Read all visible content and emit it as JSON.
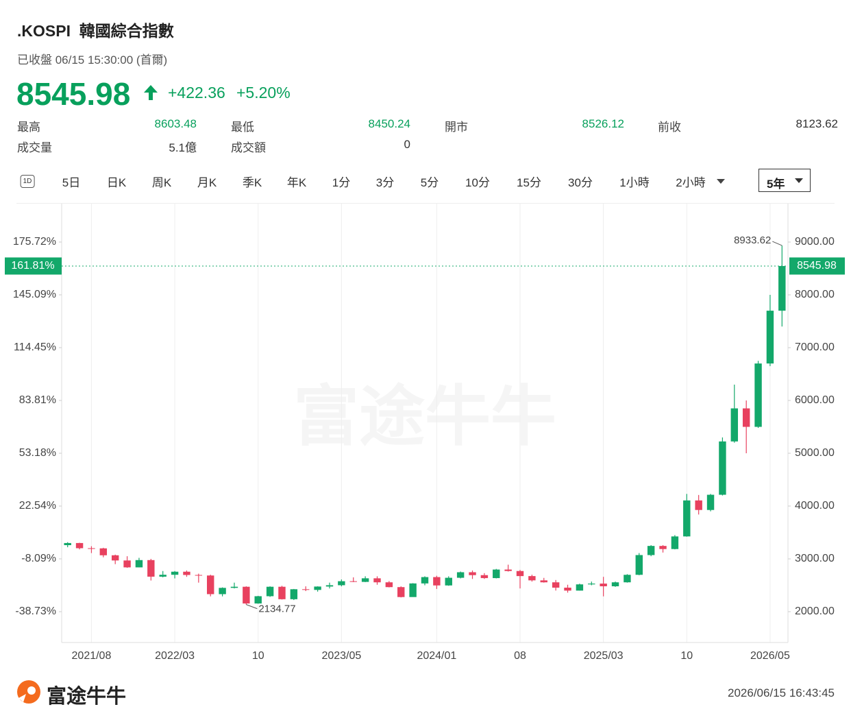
{
  "header": {
    "symbol": ".KOSPI",
    "name": "韓國綜合指數",
    "status": "已收盤 06/15 15:30:00 (首爾)",
    "price": "8545.98",
    "change": "+422.36",
    "change_pct": "+5.20%"
  },
  "stats": [
    [
      {
        "label": "最高",
        "value": "8603.48"
      },
      {
        "label": "最低",
        "value": "8450.24"
      },
      {
        "label": "開市",
        "value": "8526.12"
      },
      {
        "label": "前收",
        "value": "8123.62"
      }
    ],
    [
      {
        "label": "成交量",
        "value": "5.1億"
      },
      {
        "label": "成交額",
        "value": "0"
      }
    ]
  ],
  "tabs": [
    "1D",
    "5日",
    "日K",
    "周K",
    "月K",
    "季K",
    "年K",
    "1分",
    "3分",
    "5分",
    "10分",
    "15分",
    "30分",
    "1小時",
    "2小時"
  ],
  "selected_tab": "5年",
  "watermark": "富途牛牛",
  "footer": {
    "brand": "富途牛牛",
    "timestamp": "2026/06/15 16:43:45"
  },
  "chart_data": {
    "type": "candlestick",
    "up_color": "#13a86a",
    "down_color": "#e8415f",
    "categories": [
      null,
      null,
      "2021/08",
      null,
      null,
      null,
      null,
      null,
      null,
      "2022/03",
      null,
      null,
      null,
      null,
      null,
      null,
      "10",
      null,
      null,
      null,
      null,
      null,
      null,
      "2023/05",
      null,
      null,
      null,
      null,
      null,
      null,
      null,
      "2024/01",
      null,
      null,
      null,
      null,
      null,
      null,
      "08",
      null,
      null,
      null,
      null,
      null,
      null,
      "2025/03",
      null,
      null,
      null,
      null,
      null,
      null,
      "10",
      null,
      null,
      null,
      null,
      null,
      null,
      "2026/05",
      null
    ],
    "open": [
      3260,
      3300,
      3202,
      3199,
      3068,
      2970,
      2839,
      2977,
      2663,
      2699,
      2757,
      2695,
      2685,
      2332,
      2451,
      2472,
      2155,
      2293,
      2472,
      2236,
      2425,
      2412,
      2476,
      2501,
      2577,
      2564,
      2632,
      2556,
      2465,
      2277,
      2535,
      2655,
      2497,
      2642,
      2747,
      2692,
      2636,
      2798,
      2770,
      2674,
      2593,
      2556,
      2455,
      2399,
      2517,
      2532,
      2481,
      2556,
      2698,
      3072,
      3245,
      3186,
      3425,
      4107,
      3926,
      4214,
      5224,
      5850,
      5500,
      6700,
      7700
    ],
    "high": [
      3316,
      3305,
      3240,
      3210,
      3080,
      3050,
      3020,
      3000,
      2770,
      2770,
      2780,
      2720,
      2700,
      2460,
      2550,
      2480,
      2300,
      2480,
      2490,
      2430,
      2480,
      2480,
      2550,
      2610,
      2650,
      2670,
      2670,
      2580,
      2480,
      2540,
      2670,
      2680,
      2670,
      2760,
      2780,
      2730,
      2810,
      2890,
      2790,
      2700,
      2640,
      2600,
      2510,
      2530,
      2570,
      2660,
      2570,
      2710,
      3110,
      3260,
      3260,
      3450,
      4230,
      4210,
      4230,
      5300,
      6300,
      6000,
      6750,
      8000,
      8933.62
    ],
    "low": [
      3220,
      3180,
      3110,
      3030,
      2900,
      2830,
      2840,
      2590,
      2650,
      2630,
      2660,
      2550,
      2290,
      2290,
      2440,
      2134.77,
      2150,
      2280,
      2230,
      2220,
      2390,
      2380,
      2440,
      2480,
      2560,
      2560,
      2510,
      2460,
      2270,
      2280,
      2500,
      2430,
      2490,
      2630,
      2620,
      2620,
      2630,
      2760,
      2440,
      2570,
      2550,
      2400,
      2360,
      2400,
      2500,
      2290,
      2470,
      2550,
      2690,
      3050,
      3120,
      3180,
      3420,
      3840,
      3900,
      4200,
      5200,
      5000,
      5480,
      6650,
      7400
    ],
    "close": [
      3300,
      3202,
      3199,
      3068,
      2970,
      2839,
      2977,
      2663,
      2699,
      2757,
      2695,
      2685,
      2332,
      2451,
      2472,
      2155,
      2293,
      2472,
      2236,
      2425,
      2412,
      2476,
      2501,
      2577,
      2564,
      2632,
      2556,
      2465,
      2277,
      2535,
      2655,
      2497,
      2642,
      2747,
      2692,
      2636,
      2798,
      2770,
      2674,
      2593,
      2556,
      2455,
      2399,
      2517,
      2532,
      2481,
      2556,
      2698,
      3072,
      3245,
      3186,
      3425,
      4107,
      3926,
      4214,
      5224,
      5850,
      5500,
      6700,
      7700,
      8545.98
    ],
    "ylim": [
      1416,
      9727
    ],
    "yticks": [
      {
        "value": 2000,
        "label": "2000.00"
      },
      {
        "value": 3000,
        "label": "3000.00"
      },
      {
        "value": 4000,
        "label": "4000.00"
      },
      {
        "value": 5000,
        "label": "5000.00"
      },
      {
        "value": 6000,
        "label": "6000.00"
      },
      {
        "value": 7000,
        "label": "7000.00"
      },
      {
        "value": 8000,
        "label": "8000.00"
      },
      {
        "value": 9000,
        "label": "9000.00"
      }
    ],
    "y2lim": [
      -56.62,
      197.99
    ],
    "y2ticks": [
      {
        "value": -38.73,
        "label": "-38.73%"
      },
      {
        "value": -8.09,
        "label": "-8.09%"
      },
      {
        "value": 22.54,
        "label": "22.54%"
      },
      {
        "value": 53.18,
        "label": "53.18%"
      },
      {
        "value": 83.81,
        "label": "83.81%"
      },
      {
        "value": 114.45,
        "label": "114.45%"
      },
      {
        "value": 145.09,
        "label": "145.09%"
      },
      {
        "value": 175.72,
        "label": "175.72%"
      }
    ],
    "current_pct": {
      "value": 161.81,
      "label": "161.81%"
    },
    "max_index": 60,
    "min_index": 15
  }
}
